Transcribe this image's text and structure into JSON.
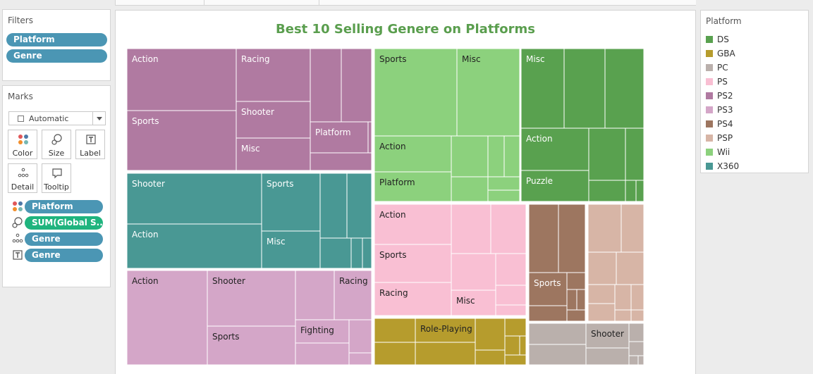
{
  "filters": {
    "title": "Filters",
    "pills": [
      "Platform",
      "Genre"
    ]
  },
  "marks": {
    "title": "Marks",
    "mark_type": "Automatic",
    "buttons": [
      "Color",
      "Size",
      "Label",
      "Detail",
      "Tooltip"
    ],
    "shelf": [
      {
        "icon": "color-dots-icon",
        "field": "Platform",
        "color": "#4b96b4"
      },
      {
        "icon": "size-icon",
        "field": "SUM(Global S..",
        "color": "#1fb47e"
      },
      {
        "icon": "detail-icon",
        "field": "Genre",
        "color": "#4b96b4"
      },
      {
        "icon": "label-icon",
        "field": "Genre",
        "color": "#4b96b4"
      }
    ]
  },
  "viz": {
    "title": "Best 10 Selling Genere on Platforms"
  },
  "legend": {
    "title": "Platform",
    "items": [
      {
        "name": "DS",
        "color": "#59a14f"
      },
      {
        "name": "GBA",
        "color": "#b69c2d"
      },
      {
        "name": "PC",
        "color": "#bab0ac"
      },
      {
        "name": "PS",
        "color": "#f9bfd3"
      },
      {
        "name": "PS2",
        "color": "#b07aa1"
      },
      {
        "name": "PS3",
        "color": "#d4a6c8"
      },
      {
        "name": "PS4",
        "color": "#9d7660"
      },
      {
        "name": "PSP",
        "color": "#d7b5a6"
      },
      {
        "name": "Wii",
        "color": "#8cd17d"
      },
      {
        "name": "X360",
        "color": "#499894"
      }
    ]
  },
  "treemap_labels": {
    "ps2": [
      "Action",
      "Racing",
      "Sports",
      "Shooter",
      "Platform",
      "Misc"
    ],
    "x360": [
      "Shooter",
      "Sports",
      "Action",
      "Misc"
    ],
    "ps3": [
      "Action",
      "Shooter",
      "Racing",
      "Sports",
      "Fighting"
    ],
    "wii": [
      "Sports",
      "Misc",
      "Action",
      "Platform"
    ],
    "ds": [
      "Misc",
      "Action",
      "Puzzle"
    ],
    "ps": [
      "Action",
      "Sports",
      "Racing",
      "Misc"
    ],
    "gba": [
      "Role-Playing"
    ],
    "ps4": [
      "Sports"
    ],
    "pc": [
      "Shooter"
    ]
  }
}
